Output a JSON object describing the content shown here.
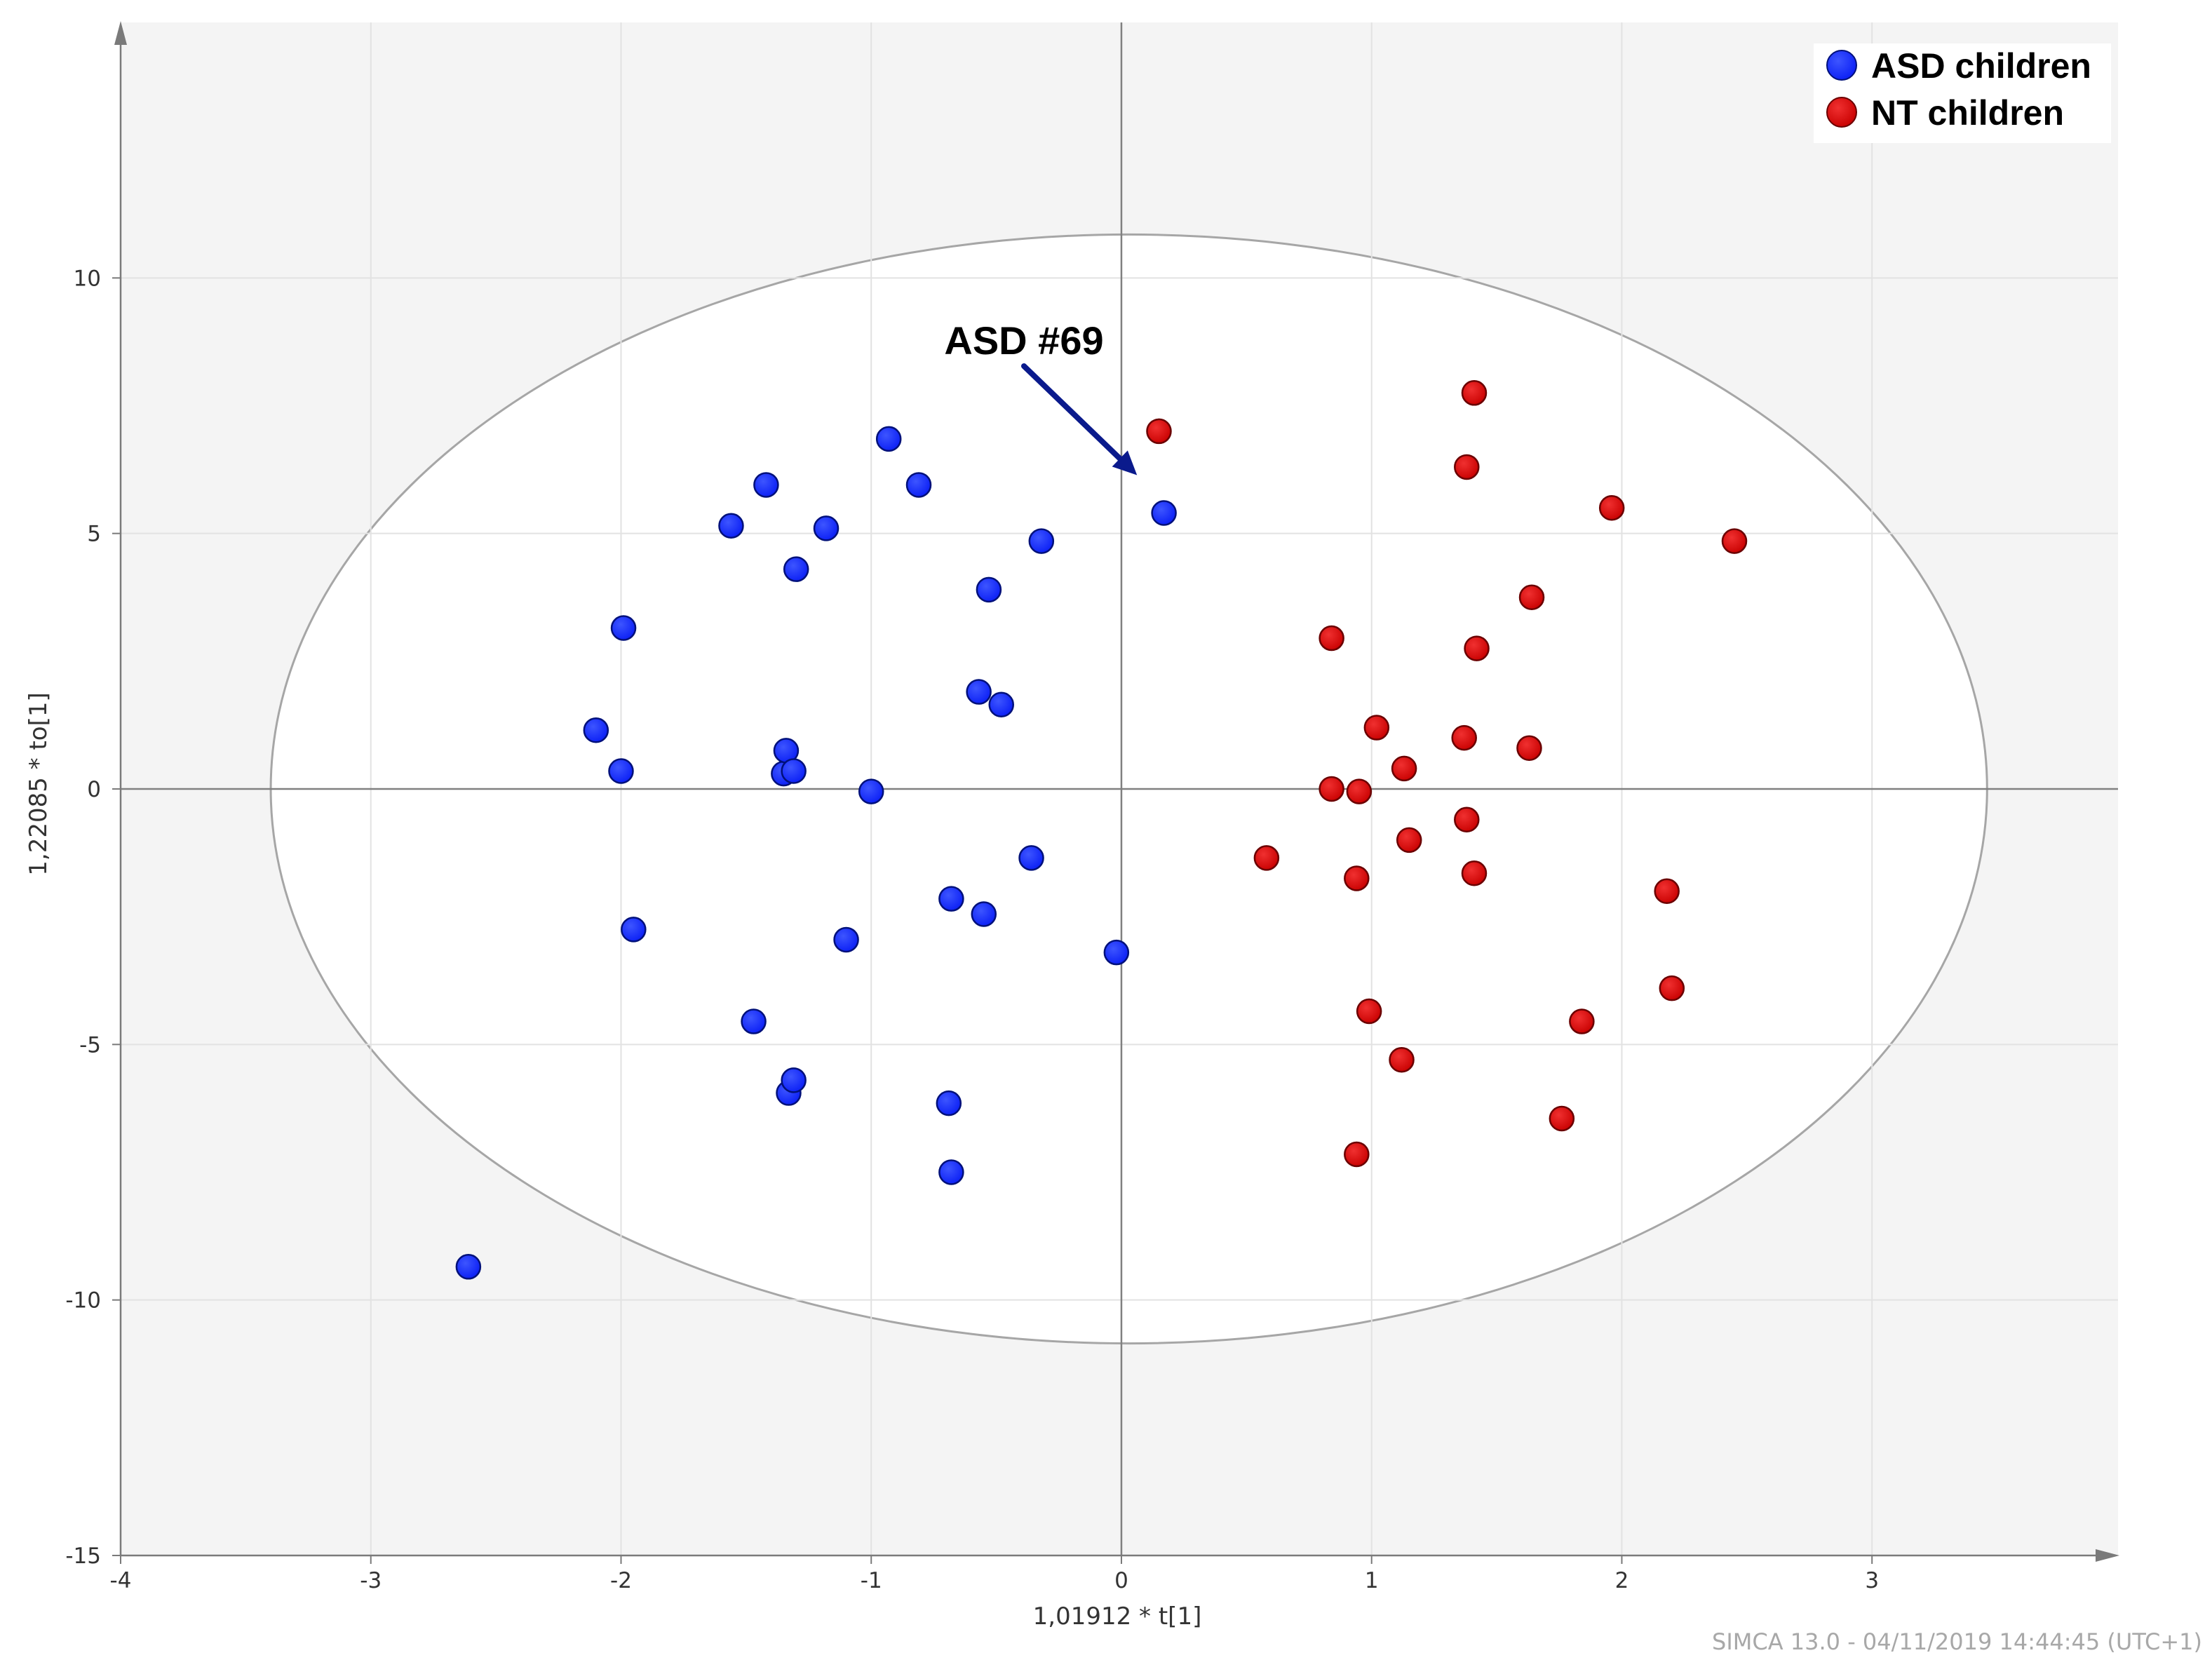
{
  "chart_data": {
    "type": "scatter",
    "title": "",
    "xlabel": "1,01912 * t[1]",
    "ylabel": "1,22085 * to[1]",
    "xlim": [
      -4,
      4
    ],
    "ylim": [
      -15,
      15
    ],
    "xticks": [
      -4,
      -3,
      -2,
      -1,
      0,
      1,
      2,
      3
    ],
    "yticks": [
      -15,
      -10,
      -5,
      0,
      5,
      10
    ],
    "xtick_labels": [
      "-4",
      "-3",
      "-2",
      "-1",
      "0",
      "1",
      "2",
      "3"
    ],
    "ytick_labels": [
      "-15",
      "-10",
      "-5",
      "0",
      "5",
      "10"
    ],
    "grid": true,
    "confidence_ellipse": {
      "cx": 0.03,
      "cy": 0.0,
      "rx": 3.43,
      "ry": 10.85
    },
    "legend_position": "top-right",
    "series": [
      {
        "name": "ASD children",
        "color": "#0a1ef5",
        "points": [
          [
            -2.61,
            -9.35
          ],
          [
            -2.1,
            1.15
          ],
          [
            -2.0,
            0.35
          ],
          [
            -1.99,
            3.15
          ],
          [
            -1.95,
            -2.75
          ],
          [
            -1.56,
            5.15
          ],
          [
            -1.47,
            -4.55
          ],
          [
            -1.42,
            5.95
          ],
          [
            -1.35,
            0.3
          ],
          [
            -1.34,
            0.75
          ],
          [
            -1.33,
            -5.95
          ],
          [
            -1.31,
            -5.7
          ],
          [
            -1.31,
            0.35
          ],
          [
            -1.3,
            4.3
          ],
          [
            -1.18,
            5.1
          ],
          [
            -1.1,
            -2.95
          ],
          [
            -1.0,
            -0.05
          ],
          [
            -0.93,
            6.85
          ],
          [
            -0.81,
            5.95
          ],
          [
            -0.69,
            -6.15
          ],
          [
            -0.68,
            -2.15
          ],
          [
            -0.68,
            -7.5
          ],
          [
            -0.57,
            1.9
          ],
          [
            -0.55,
            -2.45
          ],
          [
            -0.53,
            3.9
          ],
          [
            -0.48,
            1.65
          ],
          [
            -0.36,
            -1.35
          ],
          [
            -0.32,
            4.85
          ],
          [
            -0.02,
            -3.2
          ],
          [
            0.17,
            5.4
          ]
        ]
      },
      {
        "name": "NT children",
        "color": "#d40000",
        "points": [
          [
            0.15,
            7.0
          ],
          [
            0.58,
            -1.35
          ],
          [
            0.84,
            2.95
          ],
          [
            0.84,
            0.0
          ],
          [
            0.94,
            -7.15
          ],
          [
            0.94,
            -1.75
          ],
          [
            0.95,
            -0.05
          ],
          [
            0.99,
            -4.35
          ],
          [
            1.02,
            1.2
          ],
          [
            1.12,
            -5.3
          ],
          [
            1.13,
            0.4
          ],
          [
            1.15,
            -1.0
          ],
          [
            1.37,
            1.0
          ],
          [
            1.38,
            -0.6
          ],
          [
            1.38,
            6.3
          ],
          [
            1.41,
            7.75
          ],
          [
            1.41,
            -1.65
          ],
          [
            1.42,
            2.75
          ],
          [
            1.63,
            0.8
          ],
          [
            1.64,
            3.75
          ],
          [
            1.76,
            -6.45
          ],
          [
            1.84,
            -4.55
          ],
          [
            1.96,
            5.5
          ],
          [
            2.18,
            -2.0
          ],
          [
            2.2,
            -3.9
          ],
          [
            2.45,
            4.85
          ]
        ]
      }
    ],
    "annotations": [
      {
        "text": "ASD #69",
        "target": [
          0.04,
          5.95
        ]
      }
    ]
  },
  "footer": {
    "text": "SIMCA 13.0 - 04/11/2019 14:44:45 (UTC+1)"
  }
}
